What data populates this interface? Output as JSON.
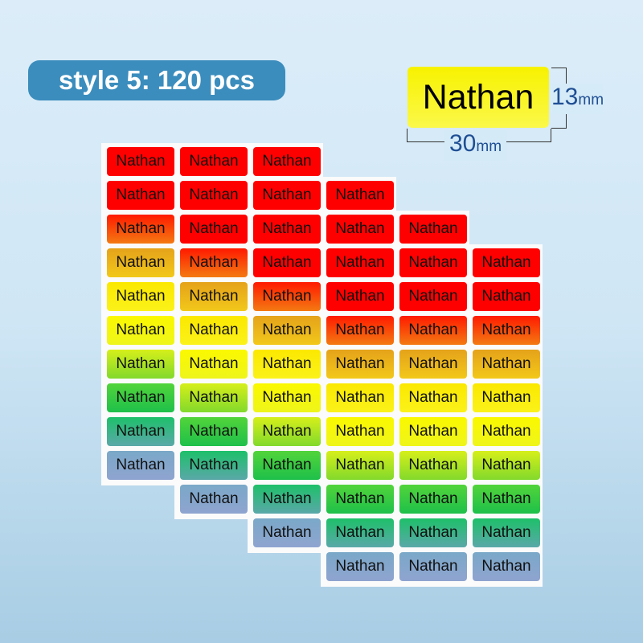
{
  "badge": {
    "text": "style 5: 120 pcs",
    "color": "#3b8dbd"
  },
  "sample": {
    "text": "Nathan",
    "width_label": "30",
    "height_label": "13",
    "unit": "mm",
    "color": "#f7f200"
  },
  "sheets": {
    "count": 4,
    "columns": 3,
    "rows": 10,
    "label_text": "Nathan",
    "row_colors": [
      [
        "#ff0000",
        "#ff0000"
      ],
      [
        "#ff0000",
        "#ff0000"
      ],
      [
        "#ff1a00",
        "#f47a12"
      ],
      [
        "#e5a21a",
        "#f2c81a"
      ],
      [
        "#fbe800",
        "#fbf21a"
      ],
      [
        "#fbf800",
        "#eef51a"
      ],
      [
        "#d6ef1a",
        "#82d92c"
      ],
      [
        "#52d43a",
        "#1ec04a"
      ],
      [
        "#1ec06a",
        "#5aa8a8"
      ],
      [
        "#7aa8c8",
        "#8fa4d0"
      ]
    ]
  }
}
